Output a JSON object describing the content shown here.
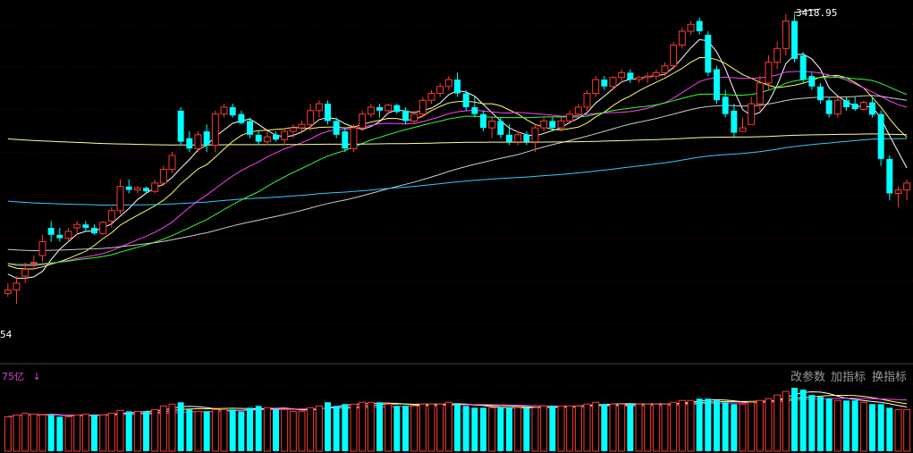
{
  "colors": {
    "background": "#000000",
    "up": "#ff3b30",
    "down": "#00ffff",
    "grid": "#3a0000",
    "ma5": "#ffffff",
    "ma10": "#ffff66",
    "ma20": "#ff40ff",
    "ma30": "#33ff33",
    "ma60": "#cccccc",
    "ma120": "#33ccff",
    "ma250": "#ffff99",
    "toolbar_text": "#9a9a9a",
    "volume_label": "#e040e0"
  },
  "labels": {
    "peak_value": "3418.95",
    "left_price_tick": "54",
    "volume_unit": "75亿",
    "volume_arrow": "↓"
  },
  "toolbar": {
    "change_params": "改参数",
    "add_indicator": "加指标",
    "switch_indicator": "换指标"
  },
  "chart_data": {
    "type": "candlestick",
    "y_peak": 3418.95,
    "ohlc_up_down": "open,high,low,close in chart price units; later values read from picture",
    "candles": [
      [
        1,
        2,
        1,
        3,
        1.5
      ],
      [
        1,
        3,
        0,
        4,
        2
      ],
      [
        1,
        4,
        3,
        6,
        5
      ],
      [
        1,
        6,
        5,
        7,
        6
      ],
      [
        1,
        7,
        6,
        10,
        9
      ],
      [
        0,
        11,
        9,
        12,
        10
      ],
      [
        0,
        10,
        9,
        11,
        9.5
      ],
      [
        1,
        9.5,
        9,
        11,
        10.5
      ],
      [
        1,
        11,
        10,
        12,
        11.5
      ],
      [
        0,
        11.5,
        10.5,
        12,
        11
      ],
      [
        0,
        11,
        10,
        11.5,
        10.2
      ],
      [
        1,
        10.2,
        10,
        12,
        11.8
      ],
      [
        1,
        12,
        11,
        14,
        13.5
      ],
      [
        1,
        13.5,
        13,
        18,
        17
      ],
      [
        0,
        17,
        16,
        18,
        16.5
      ],
      [
        1,
        16.5,
        16,
        17,
        16.8
      ],
      [
        0,
        16.8,
        16,
        17,
        16.3
      ],
      [
        1,
        16.3,
        16,
        18,
        17.5
      ],
      [
        1,
        17.5,
        17,
        20,
        19.5
      ],
      [
        1,
        19.5,
        19,
        22,
        21.5
      ],
      [
        0,
        28,
        23,
        28.5,
        23.5
      ],
      [
        0,
        24,
        22,
        25,
        22.5
      ],
      [
        1,
        22.5,
        22,
        25,
        24.5
      ],
      [
        0,
        25,
        22,
        26,
        23
      ],
      [
        1,
        23,
        22,
        28,
        27.5
      ],
      [
        1,
        27.5,
        27,
        29,
        28.5
      ],
      [
        0,
        28.5,
        27,
        29,
        27.3
      ],
      [
        0,
        27.5,
        26,
        28,
        26.2
      ],
      [
        0,
        26.5,
        24,
        27,
        24.5
      ],
      [
        0,
        24.5,
        23,
        25,
        23.5
      ],
      [
        1,
        23.5,
        23,
        25,
        24.2
      ],
      [
        0,
        24.5,
        23.5,
        25,
        23.8
      ],
      [
        1,
        23.8,
        23,
        25.5,
        25
      ],
      [
        1,
        25,
        24,
        26,
        25.5
      ],
      [
        1,
        25.5,
        25,
        26.5,
        26
      ],
      [
        1,
        26,
        25,
        29,
        28
      ],
      [
        1,
        28,
        27,
        29.5,
        29
      ],
      [
        0,
        29,
        26,
        29.5,
        26.5
      ],
      [
        0,
        26.5,
        24,
        27,
        24.5
      ],
      [
        0,
        25,
        22,
        25.5,
        22.5
      ],
      [
        1,
        22.5,
        22,
        26,
        25.5
      ],
      [
        1,
        25.5,
        25,
        28,
        27.5
      ],
      [
        1,
        27.5,
        27,
        29,
        28.5
      ],
      [
        0,
        28.5,
        27,
        29,
        28
      ],
      [
        1,
        28,
        27.5,
        29,
        28.8
      ],
      [
        0,
        28.8,
        27.5,
        29,
        27.8
      ],
      [
        0,
        28,
        26,
        28.5,
        26.5
      ],
      [
        1,
        26.5,
        26,
        28,
        27.5
      ],
      [
        1,
        27.5,
        27,
        30,
        29.5
      ],
      [
        1,
        29.5,
        29,
        31,
        30.5
      ],
      [
        1,
        30.5,
        30,
        32,
        31.5
      ],
      [
        1,
        31.5,
        31,
        33,
        32.5
      ],
      [
        0,
        32.5,
        30,
        33.5,
        30.5
      ],
      [
        0,
        30.5,
        28,
        31,
        28.5
      ],
      [
        0,
        28.5,
        27,
        30,
        27.5
      ],
      [
        0,
        27.5,
        25,
        28,
        25.5
      ],
      [
        1,
        25.5,
        24,
        27,
        26.5
      ],
      [
        0,
        26.5,
        24,
        27,
        24.5
      ],
      [
        0,
        24.5,
        23,
        26,
        23.5
      ],
      [
        1,
        23.5,
        23,
        25,
        24.5
      ],
      [
        0,
        24.5,
        23,
        25,
        23.5
      ],
      [
        1,
        23.5,
        22,
        26,
        25.5
      ],
      [
        1,
        25.5,
        25,
        27,
        26.5
      ],
      [
        0,
        26.5,
        25,
        27,
        25.5
      ],
      [
        1,
        25.5,
        25,
        27,
        26.5
      ],
      [
        1,
        26.5,
        26,
        28,
        27.5
      ],
      [
        1,
        27.5,
        27,
        29,
        28.5
      ],
      [
        1,
        28.5,
        28,
        31,
        30.5
      ],
      [
        1,
        30.5,
        30,
        33,
        32.5
      ],
      [
        0,
        32.5,
        31,
        33,
        31.5
      ],
      [
        1,
        31.5,
        31,
        33,
        32.8
      ],
      [
        1,
        32.8,
        32,
        34,
        33.5
      ],
      [
        0,
        33.5,
        32,
        34,
        32.5
      ],
      [
        1,
        32.5,
        32,
        33,
        32.8
      ],
      [
        1,
        32.8,
        32,
        33.5,
        33
      ],
      [
        1,
        33,
        32.5,
        34,
        33.5
      ],
      [
        1,
        33.5,
        33,
        35,
        34.5
      ],
      [
        1,
        34.5,
        34,
        38,
        37.5
      ],
      [
        1,
        37.5,
        37,
        40,
        39.5
      ],
      [
        1,
        39.5,
        39,
        41,
        40.5
      ],
      [
        0,
        41,
        39,
        41.5,
        39.5
      ],
      [
        0,
        39,
        33,
        39.5,
        33.5
      ],
      [
        0,
        34,
        29,
        34.5,
        29.5
      ],
      [
        0,
        30,
        27,
        31,
        27.5
      ],
      [
        0,
        28,
        24,
        29,
        24.8
      ],
      [
        1,
        25,
        26,
        27,
        25.5
      ],
      [
        1,
        26,
        27,
        30,
        29
      ],
      [
        1,
        29,
        28,
        33,
        32
      ],
      [
        1,
        32,
        31,
        36,
        35
      ],
      [
        1,
        35,
        34,
        38,
        37
      ],
      [
        1,
        37,
        36,
        42,
        41
      ],
      [
        0,
        41,
        35,
        42,
        35.5
      ],
      [
        0,
        36,
        32,
        36.5,
        32.5
      ],
      [
        0,
        33,
        31,
        33.5,
        31.5
      ],
      [
        0,
        31.5,
        29,
        32,
        29.5
      ],
      [
        0,
        29.5,
        27,
        30,
        27.5
      ],
      [
        1,
        27.5,
        27,
        30,
        29.5
      ],
      [
        0,
        29.5,
        28,
        30,
        28.5
      ],
      [
        0,
        29,
        28,
        30,
        28.2
      ],
      [
        1,
        28.2,
        28,
        29.5,
        29.2
      ],
      [
        0,
        29.2,
        27,
        30,
        27.4
      ],
      [
        0,
        27.5,
        20,
        28,
        21
      ],
      [
        0,
        21,
        15,
        21.5,
        16
      ],
      [
        1,
        16,
        14,
        17,
        16.5
      ],
      [
        1,
        16.5,
        15,
        18,
        17.5
      ]
    ],
    "volume": [
      [
        1,
        38
      ],
      [
        1,
        40
      ],
      [
        1,
        42
      ],
      [
        1,
        41
      ],
      [
        1,
        40
      ],
      [
        0,
        40
      ],
      [
        0,
        38
      ],
      [
        1,
        38
      ],
      [
        1,
        40
      ],
      [
        1,
        41
      ],
      [
        0,
        40
      ],
      [
        1,
        40
      ],
      [
        1,
        42
      ],
      [
        1,
        45
      ],
      [
        0,
        44
      ],
      [
        1,
        44
      ],
      [
        0,
        44
      ],
      [
        1,
        46
      ],
      [
        1,
        50
      ],
      [
        1,
        52
      ],
      [
        0,
        54
      ],
      [
        0,
        46
      ],
      [
        1,
        44
      ],
      [
        0,
        44
      ],
      [
        1,
        46
      ],
      [
        1,
        46
      ],
      [
        0,
        46
      ],
      [
        0,
        44
      ],
      [
        0,
        48
      ],
      [
        0,
        50
      ],
      [
        1,
        48
      ],
      [
        0,
        46
      ],
      [
        1,
        46
      ],
      [
        1,
        44
      ],
      [
        1,
        44
      ],
      [
        1,
        48
      ],
      [
        1,
        50
      ],
      [
        0,
        54
      ],
      [
        0,
        50
      ],
      [
        0,
        52
      ],
      [
        1,
        52
      ],
      [
        1,
        54
      ],
      [
        1,
        54
      ],
      [
        0,
        54
      ],
      [
        1,
        52
      ],
      [
        0,
        50
      ],
      [
        0,
        50
      ],
      [
        1,
        50
      ],
      [
        1,
        52
      ],
      [
        1,
        52
      ],
      [
        1,
        52
      ],
      [
        1,
        54
      ],
      [
        0,
        52
      ],
      [
        0,
        50
      ],
      [
        0,
        48
      ],
      [
        0,
        48
      ],
      [
        1,
        48
      ],
      [
        0,
        48
      ],
      [
        0,
        48
      ],
      [
        1,
        48
      ],
      [
        0,
        48
      ],
      [
        1,
        48
      ],
      [
        1,
        50
      ],
      [
        0,
        50
      ],
      [
        1,
        50
      ],
      [
        1,
        50
      ],
      [
        1,
        50
      ],
      [
        1,
        52
      ],
      [
        1,
        54
      ],
      [
        0,
        52
      ],
      [
        1,
        52
      ],
      [
        1,
        52
      ],
      [
        0,
        52
      ],
      [
        1,
        52
      ],
      [
        1,
        52
      ],
      [
        1,
        52
      ],
      [
        1,
        52
      ],
      [
        1,
        54
      ],
      [
        1,
        56
      ],
      [
        1,
        56
      ],
      [
        0,
        58
      ],
      [
        0,
        58
      ],
      [
        0,
        56
      ],
      [
        0,
        54
      ],
      [
        0,
        52
      ],
      [
        1,
        52
      ],
      [
        1,
        54
      ],
      [
        1,
        56
      ],
      [
        1,
        58
      ],
      [
        1,
        62
      ],
      [
        1,
        66
      ],
      [
        0,
        70
      ],
      [
        0,
        68
      ],
      [
        0,
        62
      ],
      [
        0,
        60
      ],
      [
        0,
        58
      ],
      [
        1,
        56
      ],
      [
        0,
        56
      ],
      [
        0,
        56
      ],
      [
        1,
        54
      ],
      [
        0,
        52
      ],
      [
        0,
        52
      ],
      [
        0,
        48
      ],
      [
        1,
        46
      ],
      [
        1,
        46
      ]
    ],
    "ma_periods": [
      5,
      10,
      20,
      30,
      60,
      120,
      250
    ]
  }
}
